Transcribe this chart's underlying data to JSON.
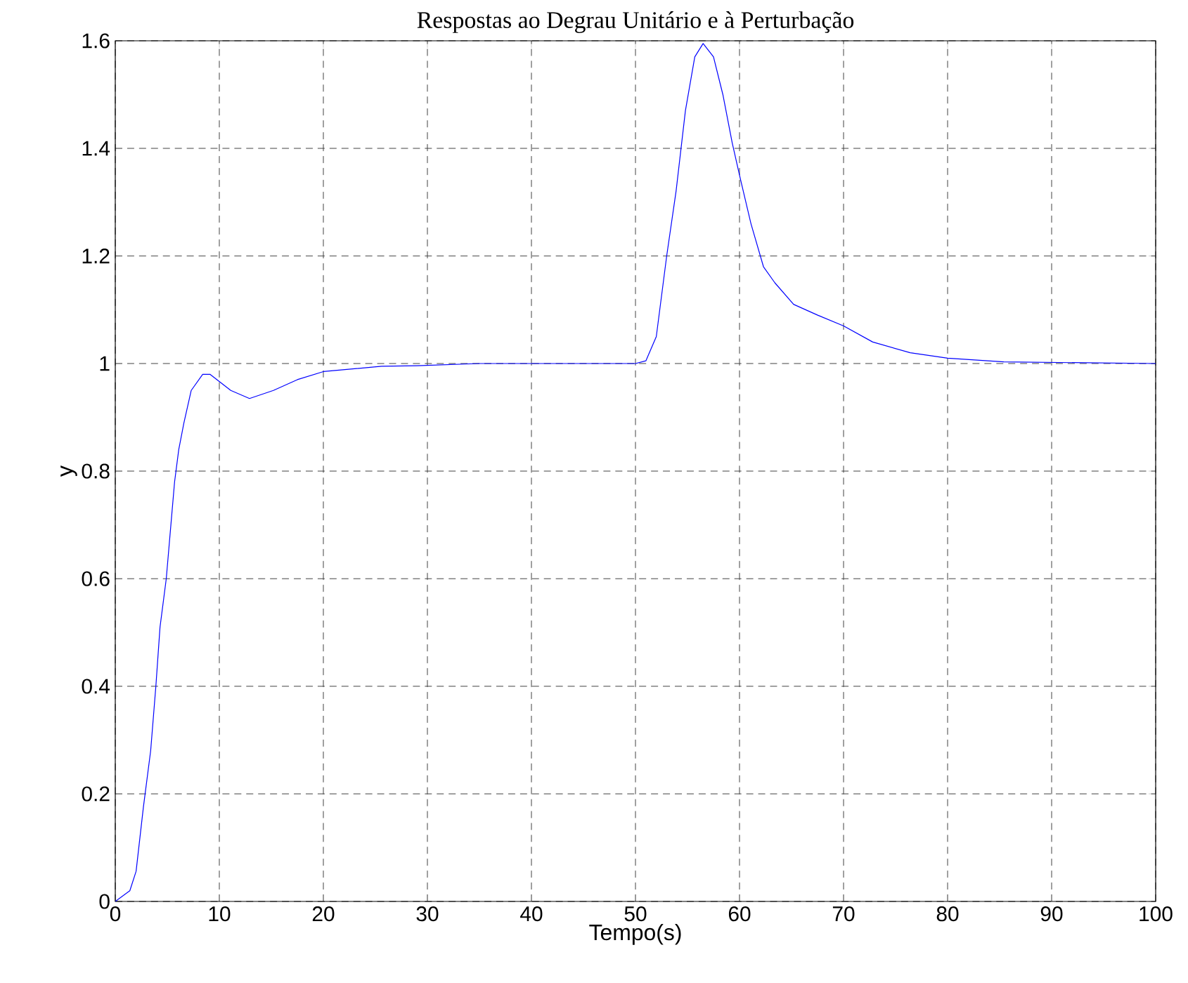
{
  "chart_data": {
    "type": "line",
    "title": "Respostas ao Degrau Unitário e à Perturbação",
    "xlabel": "Tempo(s)",
    "ylabel": "y",
    "xlim": [
      0,
      100
    ],
    "ylim": [
      0,
      1.6
    ],
    "xticks": [
      0,
      10,
      20,
      30,
      40,
      50,
      60,
      70,
      80,
      90,
      100
    ],
    "yticks": [
      0,
      0.2,
      0.4,
      0.6,
      0.8,
      1,
      1.2,
      1.4,
      1.6
    ],
    "grid": true,
    "line_style": "dashed",
    "series": [
      {
        "color": "#0000ff",
        "line_style": "solid",
        "x": [
          0,
          1.4,
          2.0,
          2.7,
          3.4,
          3.9,
          4.3,
          4.9,
          5.3,
          5.7,
          6.1,
          6.6,
          7.3,
          8.4,
          9.1,
          11.1,
          12.9,
          15.2,
          17.5,
          20,
          25.6,
          29,
          35,
          50,
          51,
          52,
          53,
          53.9,
          54.8,
          55.7,
          56.5,
          57.5,
          58.4,
          59.3,
          60,
          61.1,
          62.3,
          63.4,
          65.2,
          67.5,
          70,
          72.8,
          76.4,
          80,
          85.4,
          100
        ],
        "values": [
          0,
          0.02,
          0.056,
          0.175,
          0.28,
          0.4,
          0.51,
          0.6,
          0.69,
          0.78,
          0.84,
          0.89,
          0.95,
          0.98,
          0.98,
          0.95,
          0.935,
          0.95,
          0.97,
          0.985,
          0.995,
          0.996,
          1.0,
          1.0,
          1.005,
          1.05,
          1.2,
          1.32,
          1.47,
          1.57,
          1.595,
          1.57,
          1.5,
          1.41,
          1.35,
          1.26,
          1.18,
          1.15,
          1.11,
          1.09,
          1.07,
          1.04,
          1.02,
          1.01,
          1.003,
          1.0
        ]
      }
    ]
  }
}
